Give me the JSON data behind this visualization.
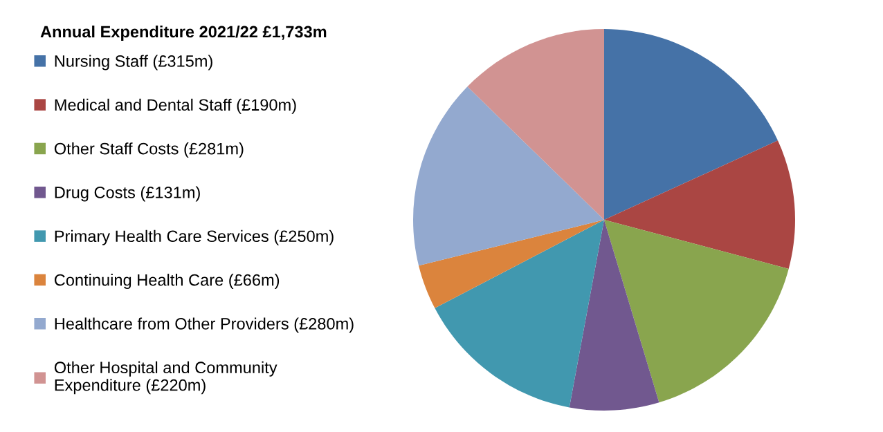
{
  "chart_data": {
    "type": "pie",
    "title": "Annual Expenditure 2021/22 £1,733m",
    "categories": [
      "Nursing Staff (£315m)",
      "Medical and Dental Staff (£190m)",
      "Other Staff Costs (£281m)",
      "Drug Costs (£131m)",
      "Primary Health Care Services (£250m)",
      "Continuing Health Care (£66m)",
      "Healthcare from Other Providers (£280m)",
      "Other Hospital and Community\nExpenditure (£220m)"
    ],
    "values": [
      315,
      190,
      281,
      131,
      250,
      66,
      280,
      220
    ],
    "colors": [
      "#4572a7",
      "#aa4643",
      "#89a54e",
      "#71588f",
      "#4198af",
      "#db843d",
      "#93a9cf",
      "#d19392"
    ],
    "legend": "left"
  }
}
